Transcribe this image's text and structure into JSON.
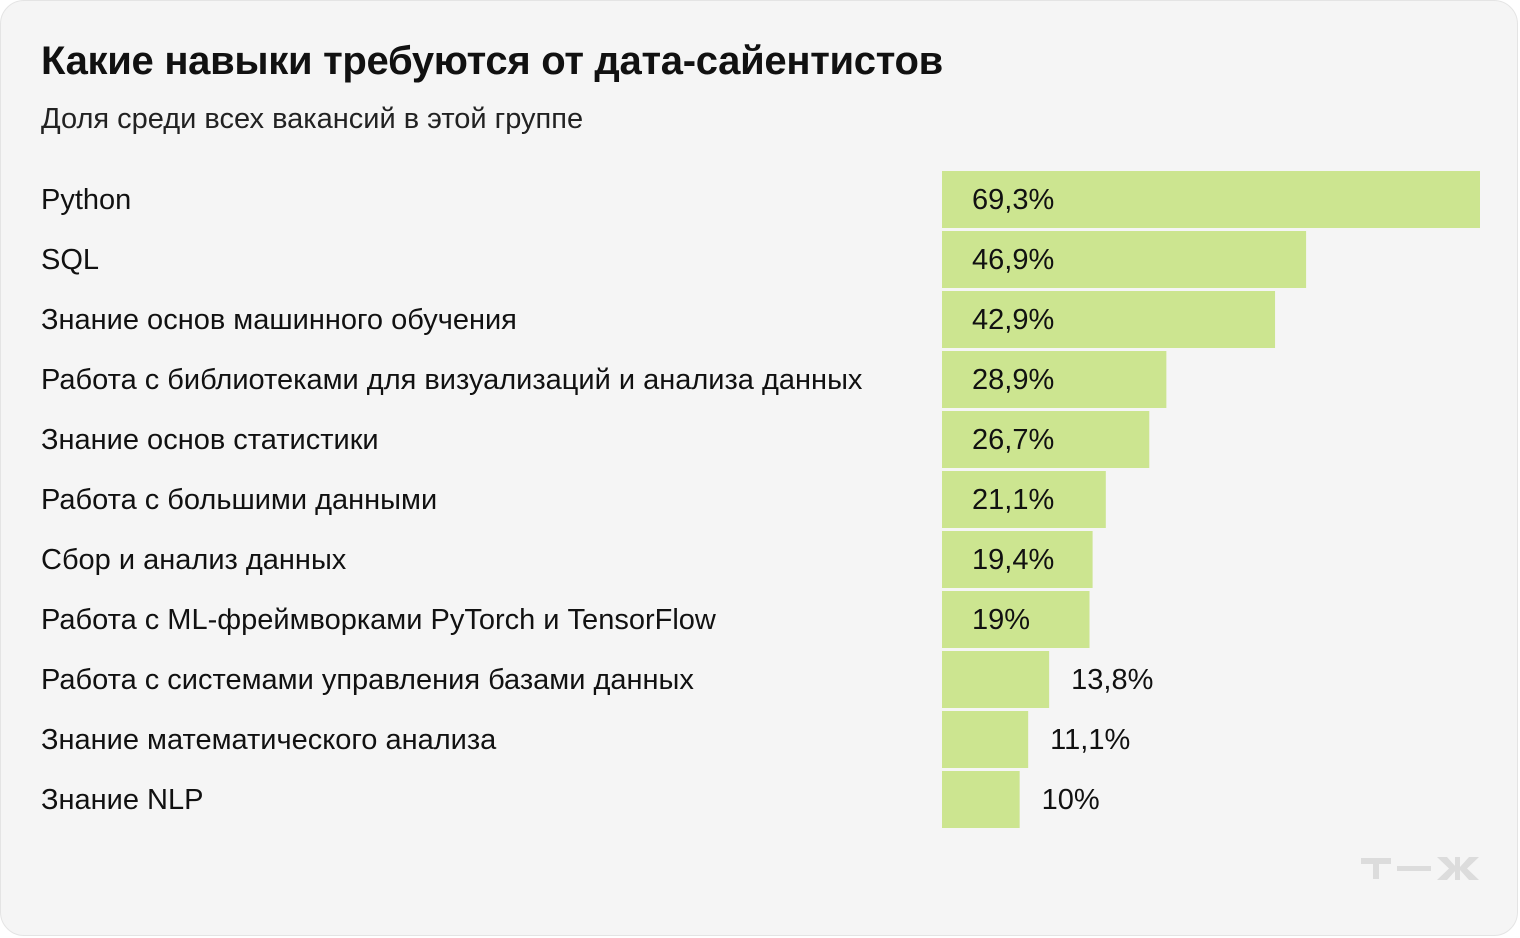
{
  "header": {
    "title": "Какие навыки требуются от дата-сайентистов",
    "subtitle": "Доля среди всех вакансий в этой группе"
  },
  "colors": {
    "bar": "#cce590",
    "background": "#f5f5f5",
    "text": "#111111",
    "logo": "#dcdcdc"
  },
  "logo": {
    "icon": "tzh-logo-icon",
    "text": "т—ж"
  },
  "chart_data": {
    "type": "bar",
    "orientation": "horizontal",
    "title": "Какие навыки требуются от дата-сайентистов",
    "subtitle": "Доля среди всех вакансий в этой группе",
    "categories": [
      "Python",
      "SQL",
      "Знание основ машинного обучения",
      "Работа с библиотеками для визуализаций и анализа данных",
      "Знание основ статистики",
      "Работа с большими данными",
      "Сбор и анализ данных",
      "Работа с ML-фреймворками PyTorch и TensorFlow",
      "Работа с системами управления базами данных",
      "Знание математического анализа",
      "Знание NLP"
    ],
    "values": [
      69.3,
      46.9,
      42.9,
      28.9,
      26.7,
      21.1,
      19.4,
      19,
      13.8,
      11.1,
      10
    ],
    "value_labels": [
      "69,3%",
      "46,9%",
      "42,9%",
      "28,9%",
      "26,7%",
      "21,1%",
      "19,4%",
      "19%",
      "13,8%",
      "11,1%",
      "10%"
    ],
    "unit": "%",
    "xlim": [
      0,
      69.3
    ],
    "grid": false,
    "legend": "none"
  }
}
